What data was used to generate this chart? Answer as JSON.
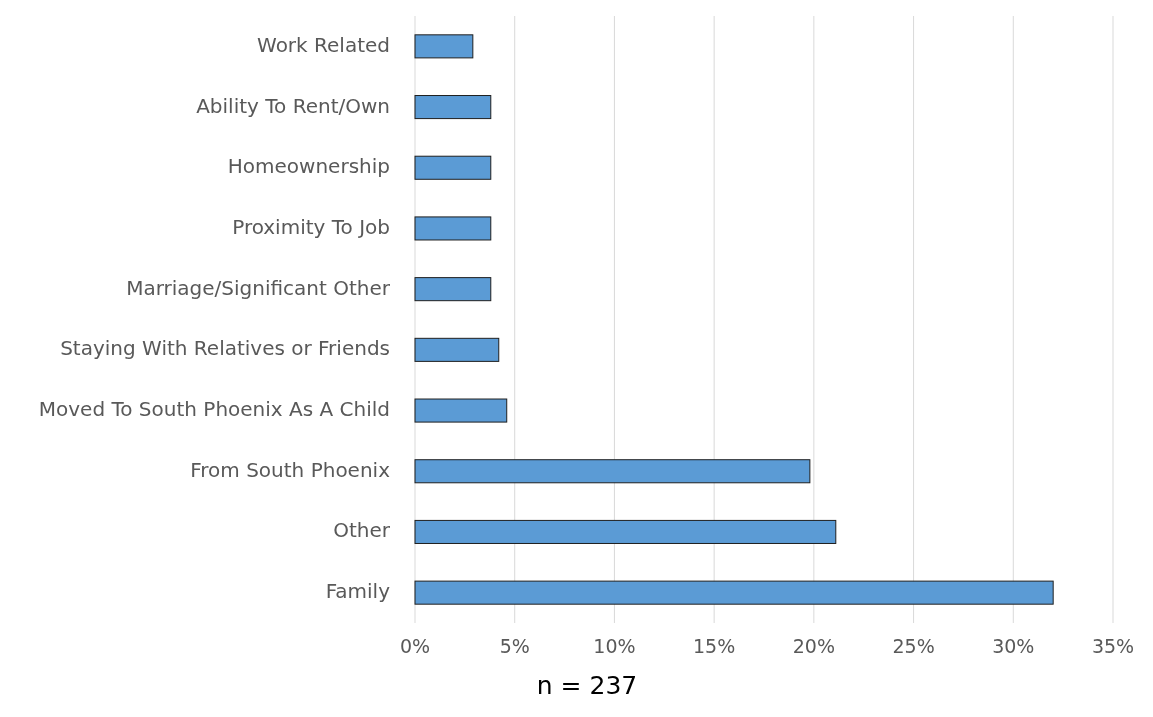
{
  "chart_data": {
    "type": "bar",
    "orientation": "horizontal",
    "categories": [
      "Work Related",
      "Ability To Rent/Own",
      "Homeownership",
      "Proximity To Job",
      "Marriage/Significant Other",
      "Staying With Relatives or Friends",
      "Moved To South Phoenix As A Child",
      "From South Phoenix",
      "Other",
      "Family"
    ],
    "values": [
      2.9,
      3.8,
      3.8,
      3.8,
      3.8,
      4.2,
      4.6,
      19.8,
      21.1,
      32.0
    ],
    "color": "#5b9bd5",
    "xlim": [
      0,
      35
    ],
    "xticks": [
      {
        "value": 0,
        "label": "0%"
      },
      {
        "value": 5,
        "label": "5%"
      },
      {
        "value": 10,
        "label": "10%"
      },
      {
        "value": 15,
        "label": "15%"
      },
      {
        "value": 20,
        "label": "20%"
      },
      {
        "value": 25,
        "label": "25%"
      },
      {
        "value": 30,
        "label": "30%"
      },
      {
        "value": 35,
        "label": "35%"
      }
    ],
    "grid": "x",
    "annotations": [
      "n = 237"
    ]
  }
}
